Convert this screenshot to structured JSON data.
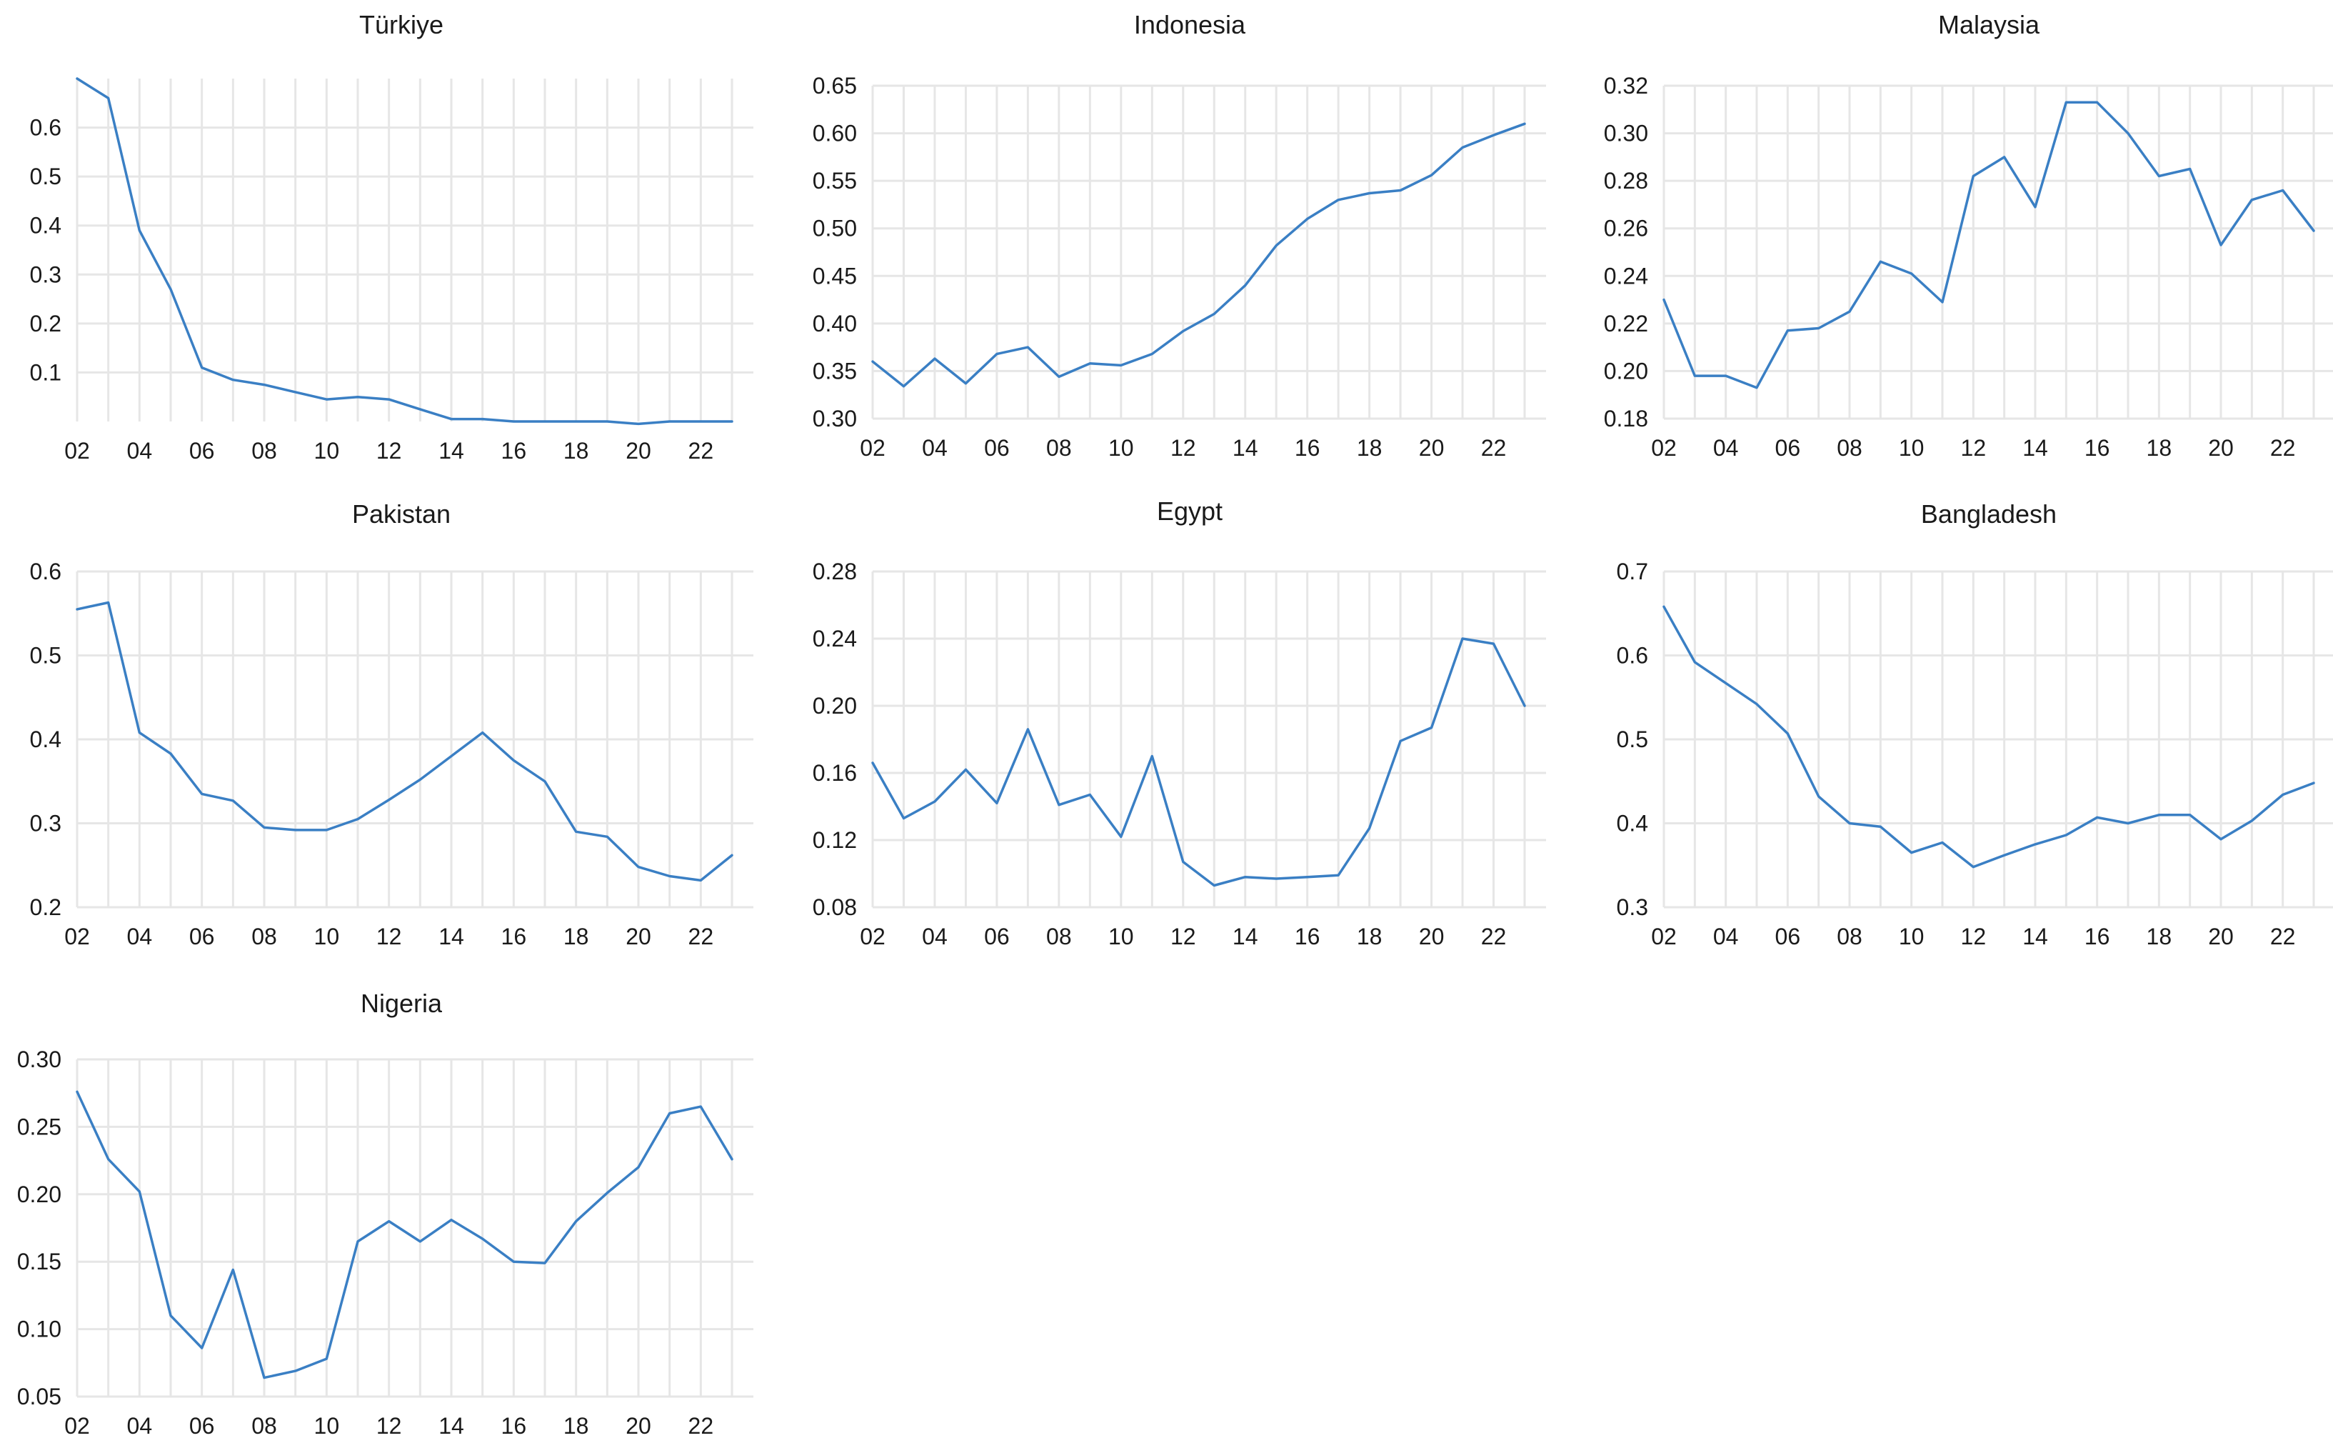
{
  "style": {
    "line_color": "#3a7fc4",
    "grid_color": "#e6e6e6",
    "text_color": "#1a1a1a",
    "background": "#ffffff"
  },
  "chart_data": [
    {
      "type": "line",
      "title": "Türkiye",
      "x": [
        2002,
        2003,
        2004,
        2005,
        2006,
        2007,
        2008,
        2009,
        2010,
        2011,
        2012,
        2013,
        2014,
        2015,
        2016,
        2017,
        2018,
        2019,
        2020,
        2021,
        2022,
        2023
      ],
      "x_tick_values": [
        2002,
        2004,
        2006,
        2008,
        2010,
        2012,
        2014,
        2016,
        2018,
        2020,
        2022
      ],
      "x_tick_labels": [
        "02",
        "04",
        "06",
        "08",
        "10",
        "12",
        "14",
        "16",
        "18",
        "20",
        "22"
      ],
      "y_ticks": [
        0.1,
        0.2,
        0.3,
        0.4,
        0.5,
        0.6
      ],
      "y_tick_labels": [
        "0.1",
        "0.2",
        "0.3",
        "0.4",
        "0.5",
        "0.6"
      ],
      "ylim": [
        0.0,
        0.7
      ],
      "grid": "horizontal and vertical",
      "series": [
        {
          "values": [
            0.7,
            0.66,
            0.39,
            0.27,
            0.11,
            0.085,
            0.075,
            0.06,
            0.045,
            0.05,
            0.045,
            0.025,
            0.005,
            0.005,
            0.0,
            0.0,
            0.0,
            0.0,
            -0.005,
            0.0,
            0.0,
            0.0
          ]
        }
      ]
    },
    {
      "type": "line",
      "title": "Indonesia",
      "x": [
        2002,
        2003,
        2004,
        2005,
        2006,
        2007,
        2008,
        2009,
        2010,
        2011,
        2012,
        2013,
        2014,
        2015,
        2016,
        2017,
        2018,
        2019,
        2020,
        2021,
        2022,
        2023
      ],
      "x_tick_values": [
        2002,
        2004,
        2006,
        2008,
        2010,
        2012,
        2014,
        2016,
        2018,
        2020,
        2022
      ],
      "x_tick_labels": [
        "02",
        "04",
        "06",
        "08",
        "10",
        "12",
        "14",
        "16",
        "18",
        "20",
        "22"
      ],
      "y_ticks": [
        0.3,
        0.35,
        0.4,
        0.45,
        0.5,
        0.55,
        0.6,
        0.65
      ],
      "y_tick_labels": [
        "0.30",
        "0.35",
        "0.40",
        "0.45",
        "0.50",
        "0.55",
        "0.60",
        "0.65"
      ],
      "ylim": [
        0.3,
        0.65
      ],
      "grid": "horizontal and vertical",
      "series": [
        {
          "values": [
            0.36,
            0.334,
            0.363,
            0.337,
            0.368,
            0.375,
            0.344,
            0.358,
            0.356,
            0.368,
            0.392,
            0.41,
            0.44,
            0.482,
            0.51,
            0.53,
            0.537,
            0.54,
            0.556,
            0.585,
            0.598,
            0.61
          ]
        }
      ]
    },
    {
      "type": "line",
      "title": "Malaysia",
      "x": [
        2002,
        2003,
        2004,
        2005,
        2006,
        2007,
        2008,
        2009,
        2010,
        2011,
        2012,
        2013,
        2014,
        2015,
        2016,
        2017,
        2018,
        2019,
        2020,
        2021,
        2022,
        2023
      ],
      "x_tick_values": [
        2002,
        2004,
        2006,
        2008,
        2010,
        2012,
        2014,
        2016,
        2018,
        2020,
        2022
      ],
      "x_tick_labels": [
        "02",
        "04",
        "06",
        "08",
        "10",
        "12",
        "14",
        "16",
        "18",
        "20",
        "22"
      ],
      "y_ticks": [
        0.18,
        0.2,
        0.22,
        0.24,
        0.26,
        0.28,
        0.3,
        0.32
      ],
      "y_tick_labels": [
        "0.18",
        "0.20",
        "0.22",
        "0.24",
        "0.26",
        "0.28",
        "0.30",
        "0.32"
      ],
      "ylim": [
        0.18,
        0.32
      ],
      "grid": "horizontal and vertical",
      "series": [
        {
          "values": [
            0.23,
            0.198,
            0.198,
            0.193,
            0.217,
            0.218,
            0.225,
            0.246,
            0.241,
            0.229,
            0.282,
            0.29,
            0.269,
            0.313,
            0.313,
            0.3,
            0.282,
            0.285,
            0.253,
            0.272,
            0.276,
            0.259
          ]
        }
      ]
    },
    {
      "type": "line",
      "title": "Pakistan",
      "x": [
        2002,
        2003,
        2004,
        2005,
        2006,
        2007,
        2008,
        2009,
        2010,
        2011,
        2012,
        2013,
        2014,
        2015,
        2016,
        2017,
        2018,
        2019,
        2020,
        2021,
        2022,
        2023
      ],
      "x_tick_values": [
        2002,
        2004,
        2006,
        2008,
        2010,
        2012,
        2014,
        2016,
        2018,
        2020,
        2022
      ],
      "x_tick_labels": [
        "02",
        "04",
        "06",
        "08",
        "10",
        "12",
        "14",
        "16",
        "18",
        "20",
        "22"
      ],
      "y_ticks": [
        0.2,
        0.3,
        0.4,
        0.5,
        0.6
      ],
      "y_tick_labels": [
        "0.2",
        "0.3",
        "0.4",
        "0.5",
        "0.6"
      ],
      "ylim": [
        0.2,
        0.6
      ],
      "grid": "horizontal and vertical",
      "series": [
        {
          "values": [
            0.555,
            0.563,
            0.408,
            0.383,
            0.335,
            0.327,
            0.295,
            0.292,
            0.292,
            0.305,
            0.328,
            0.352,
            0.38,
            0.408,
            0.375,
            0.35,
            0.29,
            0.284,
            0.248,
            0.237,
            0.232,
            0.262
          ]
        }
      ]
    },
    {
      "type": "line",
      "title": "Egypt",
      "x": [
        2002,
        2003,
        2004,
        2005,
        2006,
        2007,
        2008,
        2009,
        2010,
        2011,
        2012,
        2013,
        2014,
        2015,
        2016,
        2017,
        2018,
        2019,
        2020,
        2021,
        2022,
        2023
      ],
      "x_tick_values": [
        2002,
        2004,
        2006,
        2008,
        2010,
        2012,
        2014,
        2016,
        2018,
        2020,
        2022
      ],
      "x_tick_labels": [
        "02",
        "04",
        "06",
        "08",
        "10",
        "12",
        "14",
        "16",
        "18",
        "20",
        "22"
      ],
      "y_ticks": [
        0.08,
        0.12,
        0.16,
        0.2,
        0.24,
        0.28
      ],
      "y_tick_labels": [
        "0.08",
        "0.12",
        "0.16",
        "0.20",
        "0.24",
        "0.28"
      ],
      "ylim": [
        0.08,
        0.28
      ],
      "grid": "horizontal and vertical",
      "series": [
        {
          "values": [
            0.166,
            0.133,
            0.143,
            0.162,
            0.142,
            0.186,
            0.141,
            0.147,
            0.122,
            0.17,
            0.107,
            0.093,
            0.098,
            0.097,
            0.098,
            0.099,
            0.127,
            0.179,
            0.187,
            0.24,
            0.237,
            0.2
          ]
        }
      ]
    },
    {
      "type": "line",
      "title": "Bangladesh",
      "x": [
        2002,
        2003,
        2004,
        2005,
        2006,
        2007,
        2008,
        2009,
        2010,
        2011,
        2012,
        2013,
        2014,
        2015,
        2016,
        2017,
        2018,
        2019,
        2020,
        2021,
        2022,
        2023
      ],
      "x_tick_values": [
        2002,
        2004,
        2006,
        2008,
        2010,
        2012,
        2014,
        2016,
        2018,
        2020,
        2022
      ],
      "x_tick_labels": [
        "02",
        "04",
        "06",
        "08",
        "10",
        "12",
        "14",
        "16",
        "18",
        "20",
        "22"
      ],
      "y_ticks": [
        0.3,
        0.4,
        0.5,
        0.6,
        0.7
      ],
      "y_tick_labels": [
        "0.3",
        "0.4",
        "0.5",
        "0.6",
        "0.7"
      ],
      "ylim": [
        0.3,
        0.7
      ],
      "grid": "horizontal and vertical",
      "series": [
        {
          "values": [
            0.658,
            0.592,
            0.567,
            0.542,
            0.507,
            0.432,
            0.4,
            0.396,
            0.365,
            0.377,
            0.348,
            0.362,
            0.375,
            0.386,
            0.407,
            0.4,
            0.41,
            0.41,
            0.381,
            0.403,
            0.434,
            0.448
          ]
        }
      ]
    },
    {
      "type": "line",
      "title": "Nigeria",
      "x": [
        2002,
        2003,
        2004,
        2005,
        2006,
        2007,
        2008,
        2009,
        2010,
        2011,
        2012,
        2013,
        2014,
        2015,
        2016,
        2017,
        2018,
        2019,
        2020,
        2021,
        2022,
        2023
      ],
      "x_tick_values": [
        2002,
        2004,
        2006,
        2008,
        2010,
        2012,
        2014,
        2016,
        2018,
        2020,
        2022
      ],
      "x_tick_labels": [
        "02",
        "04",
        "06",
        "08",
        "10",
        "12",
        "14",
        "16",
        "18",
        "20",
        "22"
      ],
      "y_ticks": [
        0.05,
        0.1,
        0.15,
        0.2,
        0.25,
        0.3
      ],
      "y_tick_labels": [
        "0.05",
        "0.10",
        "0.15",
        "0.20",
        "0.25",
        "0.30"
      ],
      "ylim": [
        0.05,
        0.3
      ],
      "grid": "horizontal and vertical",
      "series": [
        {
          "values": [
            0.276,
            0.226,
            0.202,
            0.11,
            0.086,
            0.144,
            0.064,
            0.069,
            0.078,
            0.165,
            0.18,
            0.165,
            0.181,
            0.167,
            0.15,
            0.149,
            0.18,
            0.201,
            0.22,
            0.26,
            0.265,
            0.226
          ]
        }
      ]
    }
  ]
}
